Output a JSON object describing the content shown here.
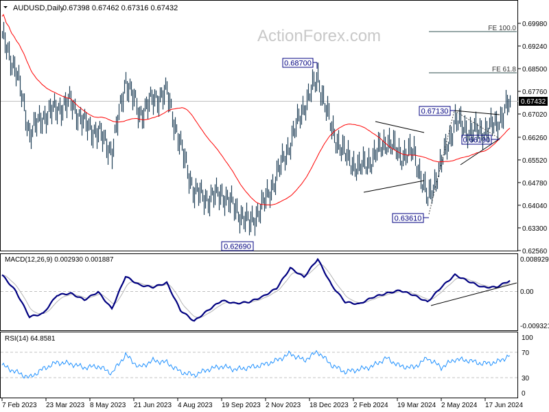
{
  "header": {
    "symbol": "AUDUSD,Daily",
    "ohlc": "0.67398 0.67462 0.67316 0.67432"
  },
  "watermark": "ActionForex.com",
  "colors": {
    "bars": "#1f3f57",
    "moving_average": "#ff0000",
    "macd": "#000080",
    "macd_signal": "#b4b4b4",
    "rsi": "#1e90ff",
    "current_price_box": "#000000"
  },
  "icons": {
    "menu": "triangle-down-icon"
  },
  "chart_data": [
    {
      "type": "bar",
      "title": "AUDUSD,Daily",
      "x_tick_labels": [
        "7 Feb 2023",
        "23 Mar 2023",
        "8 May 2023",
        "21 Jun 2023",
        "4 Aug 2023",
        "19 Sep 2023",
        "2 Nov 2023",
        "18 Dec 2023",
        "2 Feb 2024",
        "19 Mar 2024",
        "2 May 2024",
        "17 Jun 2024"
      ],
      "y_tick_labels": [
        "0.69980",
        "0.69240",
        "0.68500",
        "0.67760",
        "0.67020",
        "0.66260",
        "0.65520",
        "0.64780",
        "0.64040",
        "0.63300",
        "0.62560"
      ],
      "ylim": [
        0.6256,
        0.6998
      ],
      "current_price": "0.67432",
      "closes": [
        0.695,
        0.6844,
        0.664,
        0.6695,
        0.672,
        0.674,
        0.6667,
        0.664,
        0.658,
        0.6815,
        0.67,
        0.675,
        0.677,
        0.6595,
        0.6446,
        0.6425,
        0.6443,
        0.6392,
        0.6342,
        0.6404,
        0.65,
        0.661,
        0.673,
        0.682,
        0.665,
        0.6565,
        0.6522,
        0.6558,
        0.6616,
        0.6568,
        0.6576,
        0.642,
        0.654,
        0.668,
        0.6645,
        0.6645,
        0.6668,
        0.6743
      ],
      "annotations": {
        "high": "0.68700",
        "low": "0.62690",
        "low2": "0.63610",
        "high2": "0.67130",
        "support": "0.66190",
        "fe100": "FE 100.0",
        "fe618": "FE 61.8"
      }
    },
    {
      "type": "line",
      "title": "MACD(12,26,9) 0.002930 0.001887",
      "y_tick_labels": [
        "0.008929",
        "0.00",
        "-0.009321"
      ],
      "ylim": [
        -0.009321,
        0.008929
      ],
      "macd": [
        0.0045,
        0.0,
        -0.0071,
        -0.0062,
        -0.0011,
        -0.0006,
        -0.0024,
        -0.0002,
        -0.0049,
        0.0041,
        0.0017,
        0.0011,
        0.0023,
        -0.0053,
        -0.0083,
        -0.0053,
        -0.0026,
        -0.0034,
        -0.003,
        -0.0015,
        0.0008,
        0.0064,
        0.0039,
        0.0089,
        0.0017,
        -0.003,
        -0.0036,
        -0.0017,
        -0.0006,
        0.0002,
        -0.0011,
        -0.003,
        0.0011,
        0.0045,
        0.0027,
        0.0011,
        0.0011,
        0.00293
      ]
    },
    {
      "type": "line",
      "title": "RSI(14) 64.8581",
      "y_tick_labels": [
        "100",
        "70",
        "30",
        "0"
      ],
      "ylim": [
        0,
        100
      ],
      "levels": [
        70,
        30
      ],
      "rsi": [
        49.8,
        39,
        30,
        44,
        54,
        52,
        46,
        48,
        37,
        66,
        46,
        57,
        54,
        39,
        34,
        43,
        48,
        43,
        46,
        50,
        57,
        68,
        57,
        71,
        50,
        39,
        43,
        48,
        61,
        48,
        46,
        61,
        46,
        59,
        57,
        52,
        54,
        64.86
      ]
    }
  ]
}
